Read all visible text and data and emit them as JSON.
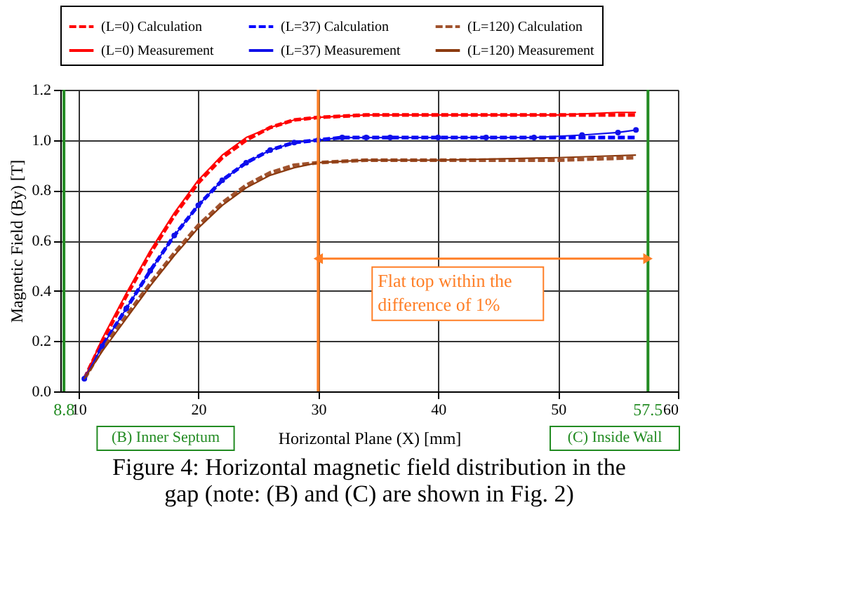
{
  "chart_data": {
    "type": "line",
    "xlabel": "Horizontal Plane (X) [mm]",
    "ylabel": "Magnetic Field (By) [T]",
    "xlim": [
      8.5,
      60
    ],
    "xticks": [
      10,
      20,
      30,
      40,
      50,
      60
    ],
    "ylim": [
      0,
      1.2
    ],
    "yticks": [
      {
        "value": 0,
        "label": "0.0"
      },
      0.2,
      0.4,
      0.6,
      0.8,
      {
        "value": 1,
        "label": "1.0"
      },
      1.2
    ],
    "grid": true,
    "legend": "top",
    "series": [
      {
        "name": "(L=0) Calculation",
        "color": "#ff0000",
        "line_style": "dashed",
        "marker": "none",
        "x": [
          10.5,
          12,
          14,
          16,
          18,
          20,
          22,
          24,
          26,
          28,
          30,
          34,
          40,
          45,
          50,
          55,
          56.5
        ],
        "values": [
          0.05,
          0.2,
          0.38,
          0.55,
          0.7,
          0.83,
          0.93,
          1.0,
          1.05,
          1.08,
          1.09,
          1.1,
          1.1,
          1.1,
          1.1,
          1.1,
          1.1
        ]
      },
      {
        "name": "(L=37) Calculation",
        "color": "#0000ff",
        "line_style": "dashed",
        "marker": "none",
        "x": [
          10.5,
          12,
          14,
          16,
          18,
          20,
          22,
          24,
          26,
          28,
          30,
          32,
          40,
          50,
          56.5
        ],
        "values": [
          0.05,
          0.18,
          0.33,
          0.48,
          0.62,
          0.74,
          0.84,
          0.91,
          0.96,
          0.99,
          1.0,
          1.01,
          1.01,
          1.01,
          1.01
        ]
      },
      {
        "name": "(L=120) Calculation",
        "color": "#a0522d",
        "line_style": "dashed",
        "marker": "none",
        "x": [
          10.5,
          12,
          14,
          16,
          18,
          20,
          22,
          24,
          26,
          28,
          30,
          34,
          40,
          50,
          56.5
        ],
        "values": [
          0.05,
          0.17,
          0.3,
          0.43,
          0.55,
          0.66,
          0.75,
          0.82,
          0.87,
          0.9,
          0.91,
          0.92,
          0.92,
          0.92,
          0.93
        ]
      },
      {
        "name": "(L=0) Measurement",
        "color": "#ff0000",
        "line_style": "solid",
        "marker": "none",
        "x": [
          10.5,
          12,
          14,
          16,
          18,
          20,
          22,
          24,
          26,
          28,
          30,
          34,
          40,
          45,
          50,
          55,
          56.5
        ],
        "values": [
          0.05,
          0.21,
          0.39,
          0.56,
          0.71,
          0.84,
          0.94,
          1.01,
          1.05,
          1.08,
          1.09,
          1.1,
          1.1,
          1.1,
          1.1,
          1.11,
          1.11
        ]
      },
      {
        "name": "(L=37) Measurement",
        "color": "#1010e8",
        "line_style": "solid",
        "marker": "circle",
        "x": [
          10.5,
          12,
          14,
          16,
          18,
          20,
          22,
          24,
          26,
          28,
          30,
          32,
          34,
          36,
          40,
          44,
          48,
          52,
          55,
          56.5
        ],
        "values": [
          0.05,
          0.18,
          0.33,
          0.48,
          0.62,
          0.74,
          0.84,
          0.91,
          0.96,
          0.99,
          1.0,
          1.01,
          1.01,
          1.01,
          1.01,
          1.01,
          1.01,
          1.02,
          1.03,
          1.04
        ]
      },
      {
        "name": "(L=120) Measurement",
        "color": "#8b3a0f",
        "line_style": "solid",
        "marker": "none",
        "x": [
          10.5,
          12,
          14,
          16,
          18,
          20,
          22,
          24,
          26,
          28,
          30,
          34,
          40,
          50,
          56.5
        ],
        "values": [
          0.05,
          0.16,
          0.29,
          0.42,
          0.54,
          0.65,
          0.74,
          0.81,
          0.86,
          0.89,
          0.91,
          0.92,
          0.92,
          0.93,
          0.94
        ]
      }
    ],
    "ref_lines": [
      {
        "axis": "x",
        "value": 8.8,
        "label": "8.8",
        "color": "#228b22"
      },
      {
        "axis": "x",
        "value": 57.5,
        "label": "57.5",
        "color": "#228b22"
      },
      {
        "axis": "x",
        "value": 30,
        "color": "#ff7f27"
      }
    ],
    "annotations": [
      "(B) Inner Septum",
      "(C) Inside Wall",
      "Flat top within the difference of 1%",
      "Figure 4: Horizontal magnetic field distribution in the gap   (note: (B) and (C) are shown in Fig. 2)"
    ]
  }
}
